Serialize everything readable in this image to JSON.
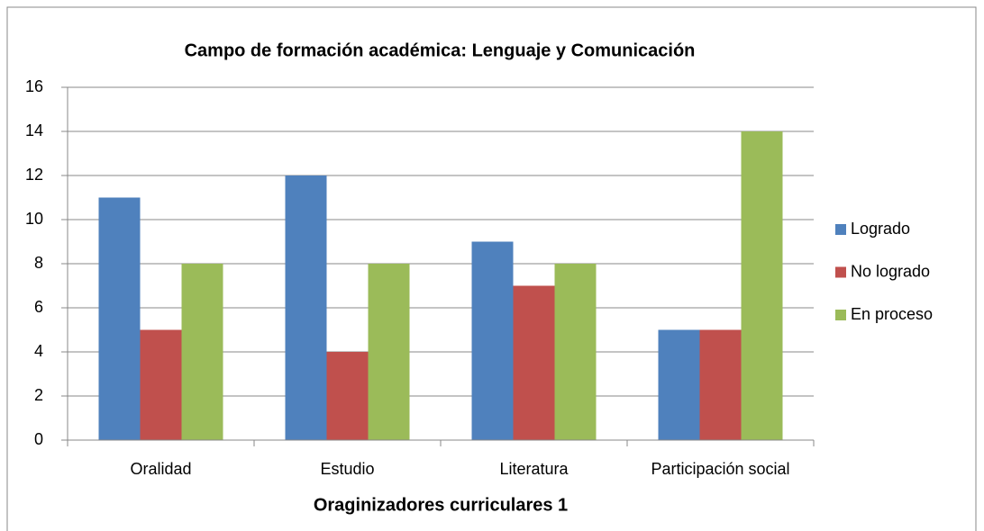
{
  "chart_data": {
    "type": "bar",
    "title": "Campo de formación académica: Lenguaje y Comunicación",
    "x_label": "Oraginizadores curriculares 1",
    "categories": [
      "Oralidad",
      "Estudio",
      "Literatura",
      "Participación social"
    ],
    "series": [
      {
        "name": "Logrado",
        "color": "#4f81bd",
        "values": [
          11,
          12,
          9,
          5
        ]
      },
      {
        "name": "No logrado",
        "color": "#c0504d",
        "values": [
          5,
          4,
          7,
          5
        ]
      },
      {
        "name": "En proceso",
        "color": "#9bbb59",
        "values": [
          8,
          8,
          8,
          14
        ]
      }
    ],
    "ylim": [
      0,
      16
    ],
    "yticks": [
      0,
      2,
      4,
      6,
      8,
      10,
      12,
      14,
      16
    ],
    "grid": true,
    "legend": "right"
  }
}
